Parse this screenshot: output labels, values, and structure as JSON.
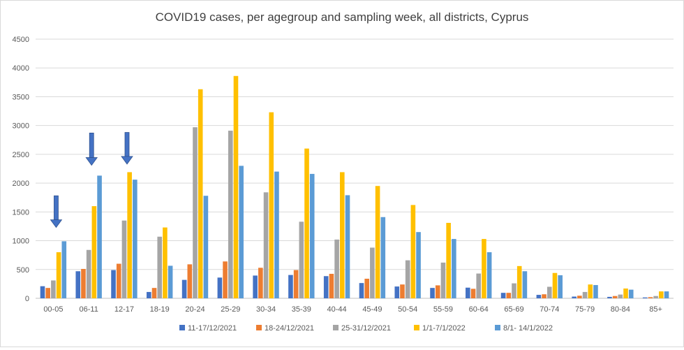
{
  "chart_data": {
    "type": "bar",
    "title": "COVID19 cases, per agegroup and sampling week, all districts, Cyprus",
    "xlabel": "",
    "ylabel": "",
    "ylim": [
      0,
      4500
    ],
    "yticks": [
      0,
      500,
      1000,
      1500,
      2000,
      2500,
      3000,
      3500,
      4000,
      4500
    ],
    "grid": true,
    "legend_position": "bottom",
    "categories": [
      "00-05",
      "06-11",
      "12-17",
      "18-19",
      "20-24",
      "25-29",
      "30-34",
      "35-39",
      "40-44",
      "45-49",
      "50-54",
      "55-59",
      "60-64",
      "65-69",
      "70-74",
      "75-79",
      "80-84",
      "85+"
    ],
    "series": [
      {
        "name": "11-17/12/2021",
        "color": "#4472c4",
        "values": [
          210,
          470,
          490,
          110,
          320,
          360,
          395,
          405,
          385,
          265,
          205,
          180,
          185,
          95,
          60,
          30,
          25,
          15
        ]
      },
      {
        "name": "18-24/12/2021",
        "color": "#ed7d31",
        "values": [
          180,
          510,
          600,
          180,
          590,
          640,
          530,
          490,
          425,
          340,
          240,
          225,
          165,
          95,
          70,
          45,
          40,
          20
        ]
      },
      {
        "name": "25-31/12/2021",
        "color": "#a5a5a5",
        "values": [
          310,
          840,
          1350,
          1070,
          2970,
          2910,
          1840,
          1330,
          1020,
          880,
          660,
          620,
          430,
          260,
          200,
          110,
          65,
          40
        ]
      },
      {
        "name": "1/1-7/1/2022",
        "color": "#ffc000",
        "values": [
          800,
          1600,
          2190,
          1230,
          3630,
          3860,
          3230,
          2600,
          2190,
          1950,
          1620,
          1310,
          1030,
          560,
          440,
          240,
          170,
          120
        ]
      },
      {
        "name": "8/1- 14/1/2022",
        "color": "#5b9bd5",
        "values": [
          990,
          2130,
          2060,
          565,
          1780,
          2300,
          2200,
          2160,
          1790,
          1410,
          1150,
          1030,
          800,
          470,
          400,
          230,
          150,
          120
        ]
      }
    ],
    "annotations": [
      {
        "type": "arrow",
        "category": "00-05",
        "from_value": 1780,
        "to_value": 1230,
        "color": "#4472c4"
      },
      {
        "type": "arrow",
        "category": "06-11",
        "from_value": 2870,
        "to_value": 2310,
        "color": "#4472c4"
      },
      {
        "type": "arrow",
        "category": "12-17",
        "from_value": 2880,
        "to_value": 2330,
        "color": "#4472c4"
      }
    ]
  }
}
